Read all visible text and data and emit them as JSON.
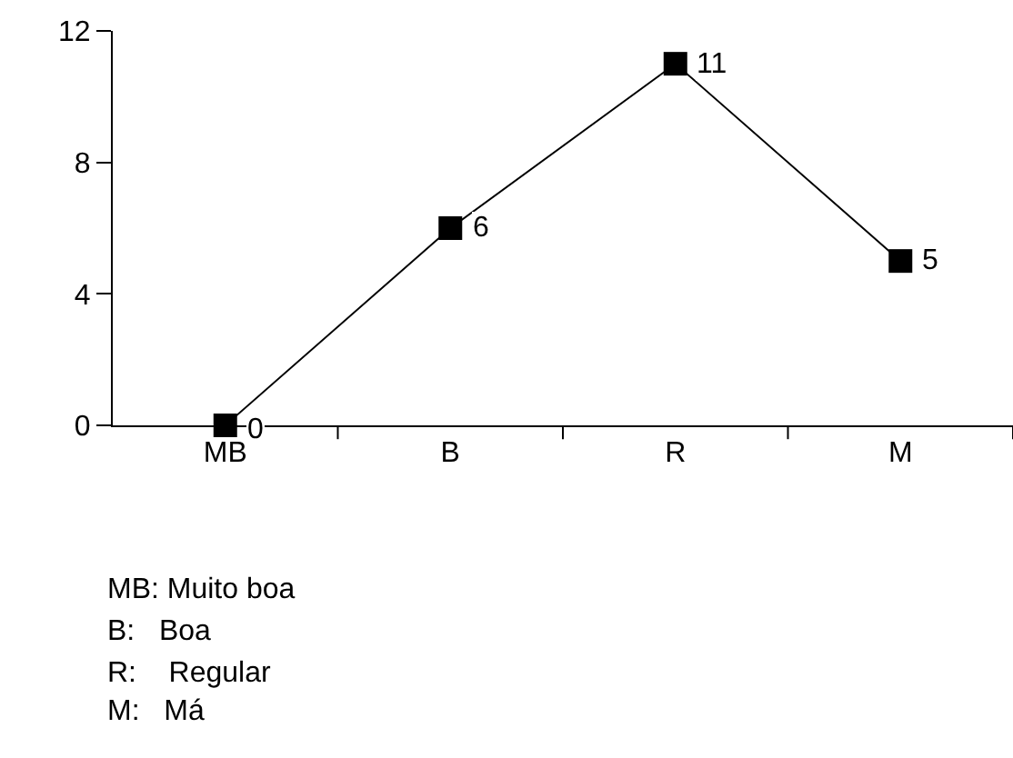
{
  "chart_data": {
    "type": "line",
    "categories": [
      "MB",
      "B",
      "R",
      "M"
    ],
    "series": [
      {
        "color": "#000000",
        "values": [
          0,
          6,
          11,
          5
        ]
      }
    ],
    "ylim": [
      0,
      12
    ],
    "yticks": [
      0,
      4,
      8,
      12
    ],
    "grid": false,
    "marker": "square",
    "line_style": "solid",
    "data_labels": true,
    "annotations": [
      "MB: Muito boa",
      "B:   Boa",
      "R:    Regular",
      "M:   Má"
    ]
  }
}
